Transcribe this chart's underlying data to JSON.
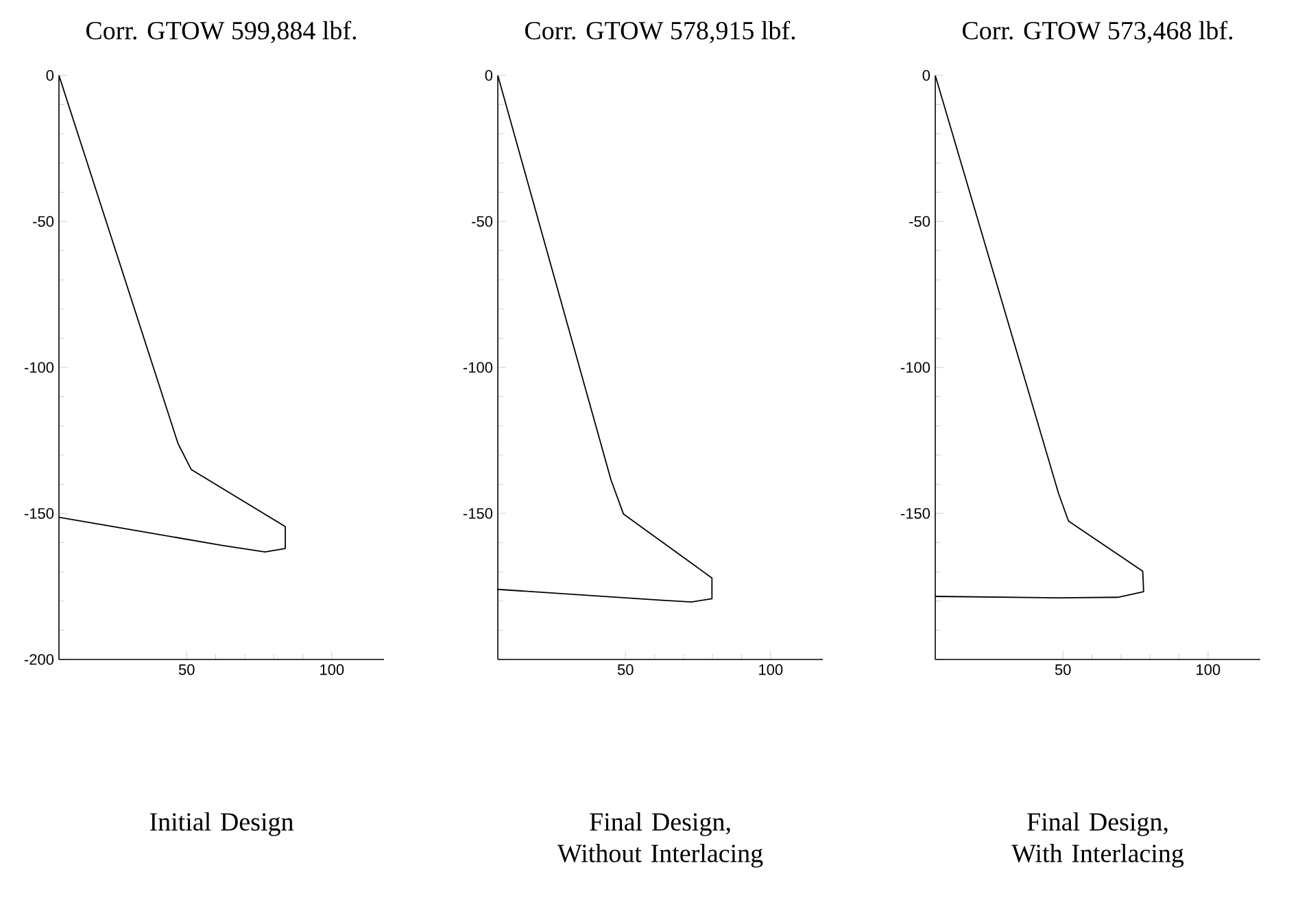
{
  "chart_data": [
    {
      "type": "line",
      "title": "Corr. GTOW 599,884 lbf.",
      "xlabel": "Initial Design",
      "xlim": [
        6,
        118
      ],
      "ylim": [
        -200,
        0
      ],
      "xticks": [
        50,
        100
      ],
      "yticks": [
        -200,
        -150,
        -100,
        -50,
        0
      ],
      "series": [
        {
          "color": "#000000",
          "x": [
            6,
            47,
            51.6,
            84,
            84,
            77,
            62.6,
            6
          ],
          "values": [
            0,
            -126,
            -135,
            -154.5,
            -162,
            -163.2,
            -161,
            -151.3
          ]
        }
      ]
    },
    {
      "type": "line",
      "title": "Corr. GTOW 578,915 lbf.",
      "xlabel": "Final Design, Without Interlacing",
      "xlim": [
        6,
        118
      ],
      "ylim": [
        -200,
        0
      ],
      "xticks": [
        50,
        100
      ],
      "yticks": [
        {
          "value": -200,
          "label": null
        },
        -150,
        -100,
        -50,
        0
      ],
      "series": [
        {
          "color": "#000000",
          "x": [
            6,
            45,
            49.3,
            79.8,
            79.8,
            72.8,
            62.6,
            6
          ],
          "values": [
            0,
            -138.5,
            -150.2,
            -172.1,
            -179.2,
            -180.3,
            -179.7,
            -176
          ]
        }
      ]
    },
    {
      "type": "line",
      "title": "Corr. GTOW 573,468 lbf.",
      "xlabel": "Final Design, With Interlacing",
      "xlim": [
        6,
        118
      ],
      "ylim": [
        -200,
        0
      ],
      "xticks": [
        50,
        100
      ],
      "yticks": [
        {
          "value": -200,
          "label": null
        },
        -150,
        -100,
        -50,
        0
      ],
      "series": [
        {
          "color": "#000000",
          "x": [
            6,
            48.5,
            51.9,
            77.5,
            77.8,
            68.9,
            48.5,
            6
          ],
          "values": [
            0,
            -143.2,
            -152.6,
            -169.8,
            -176.8,
            -178.7,
            -178.9,
            -178.4
          ]
        }
      ]
    }
  ]
}
